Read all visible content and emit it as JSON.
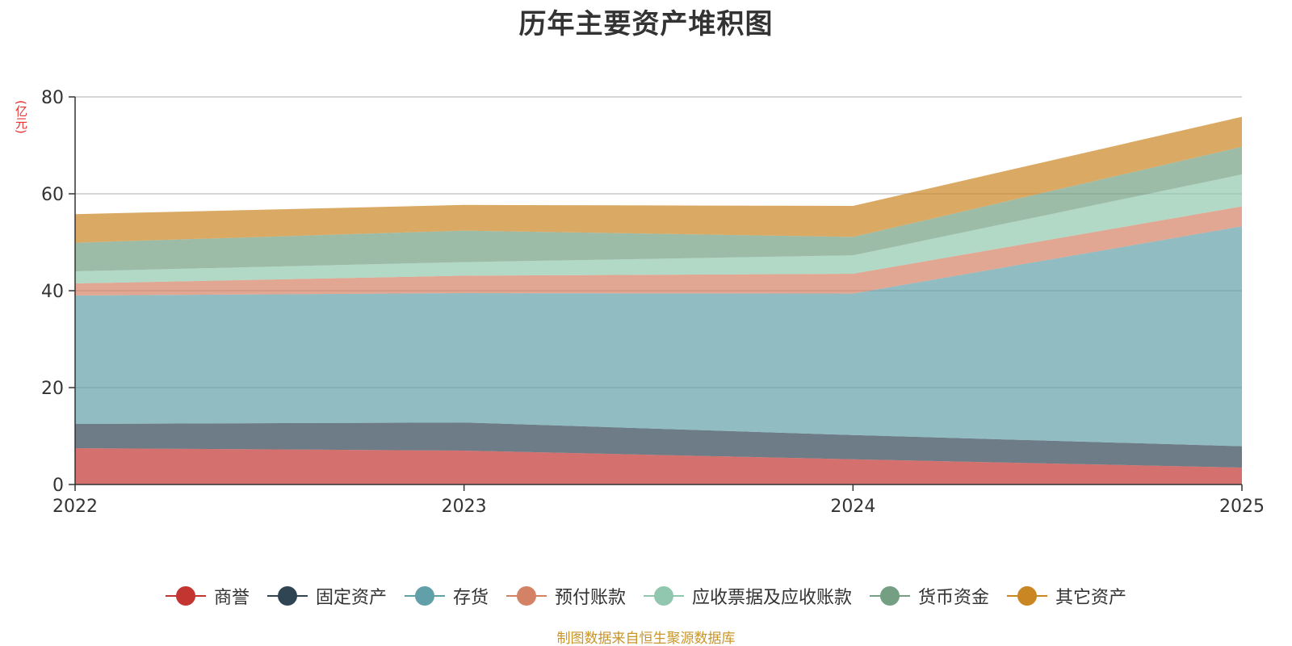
{
  "chart_data": {
    "type": "area",
    "stacked": true,
    "title": "历年主要资产堆积图",
    "ylabel": "(亿元)",
    "xlabel": "",
    "categories": [
      "2022",
      "2023",
      "2024",
      "2025"
    ],
    "ylim": [
      0,
      80
    ],
    "yticks": [
      0,
      20,
      40,
      60,
      80
    ],
    "grid": true,
    "legend_position": "bottom",
    "series": [
      {
        "name": "商誉",
        "color": "#c23531",
        "values": [
          7.5,
          7.0,
          5.2,
          3.5
        ]
      },
      {
        "name": "固定资产",
        "color": "#2f4554",
        "values": [
          5.0,
          5.8,
          5.0,
          4.4
        ]
      },
      {
        "name": "存货",
        "color": "#61a0a8",
        "values": [
          26.5,
          26.7,
          29.2,
          45.4
        ]
      },
      {
        "name": "预付账款",
        "color": "#d48265",
        "values": [
          2.5,
          3.6,
          4.1,
          4.1
        ]
      },
      {
        "name": "应收票据及应收账款",
        "color": "#91c7ae",
        "values": [
          2.5,
          2.8,
          3.8,
          6.6
        ]
      },
      {
        "name": "货币资金",
        "color": "#749f83",
        "values": [
          5.9,
          6.5,
          3.8,
          5.7
        ]
      },
      {
        "name": "其它资产",
        "color": "#ca8622",
        "values": [
          5.9,
          5.3,
          6.4,
          6.2
        ]
      }
    ]
  },
  "footer": {
    "source": "制图数据来自恒生聚源数据库"
  }
}
